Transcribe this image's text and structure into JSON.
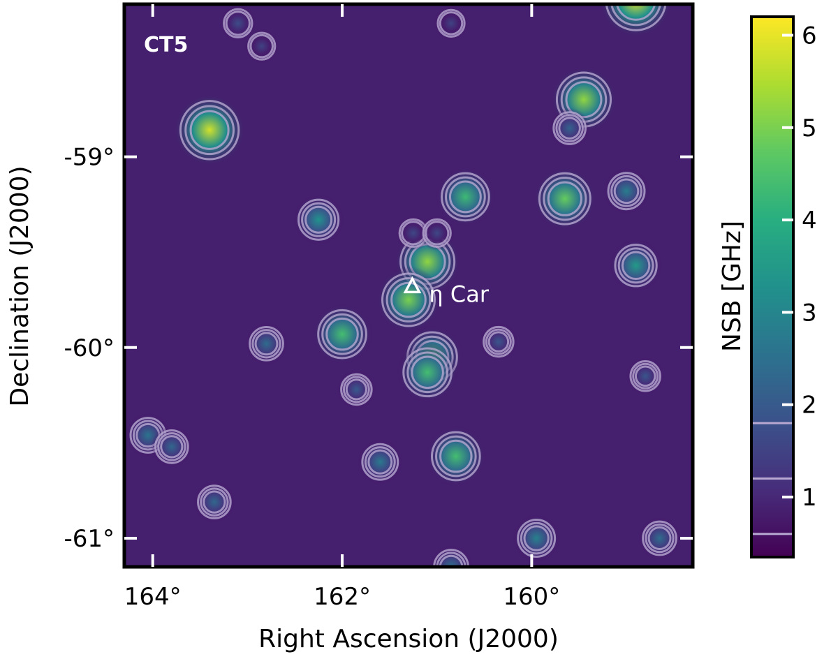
{
  "chart_data": {
    "type": "heatmap",
    "panel_label": "CT5",
    "xlabel": "Right Ascension (J2000)",
    "ylabel": "Declination (J2000)",
    "colorbar_label": "NSB [GHz]",
    "colormap": "viridis",
    "x_ticks": [
      164,
      162,
      160
    ],
    "x_tick_labels": [
      "164°",
      "162°",
      "160°"
    ],
    "y_ticks": [
      -59,
      -60,
      -61
    ],
    "y_tick_labels": [
      "-59°",
      "-60°",
      "-61°"
    ],
    "xlim": [
      164.3,
      158.3
    ],
    "ylim": [
      -61.15,
      -58.2
    ],
    "colorbar_ticks": [
      1,
      2,
      3,
      4,
      5,
      6
    ],
    "colorbar_tick_labels": [
      "1",
      "2",
      "3",
      "4",
      "5",
      "6"
    ],
    "colorbar_range": [
      0.35,
      6.2
    ],
    "contour_levels": [
      0.6,
      1.2,
      1.8
    ],
    "background_level": 0.6,
    "sources": [
      {
        "ra": 163.4,
        "dec": -58.86,
        "nsb": 5.8
      },
      {
        "ra": 162.25,
        "dec": -59.33,
        "nsb": 3.3
      },
      {
        "ra": 161.1,
        "dec": -59.55,
        "nsb": 5.2
      },
      {
        "ra": 161.3,
        "dec": -59.75,
        "nsb": 5.0
      },
      {
        "ra": 161.05,
        "dec": -60.05,
        "nsb": 4.6
      },
      {
        "ra": 161.1,
        "dec": -60.13,
        "nsb": 4.4
      },
      {
        "ra": 162.0,
        "dec": -59.93,
        "nsb": 4.4
      },
      {
        "ra": 160.7,
        "dec": -59.21,
        "nsb": 4.3
      },
      {
        "ra": 159.65,
        "dec": -59.22,
        "nsb": 4.8
      },
      {
        "ra": 159.45,
        "dec": -58.7,
        "nsb": 5.2
      },
      {
        "ra": 158.9,
        "dec": -58.18,
        "nsb": 6.0
      },
      {
        "ra": 159.0,
        "dec": -59.18,
        "nsb": 2.8
      },
      {
        "ra": 158.9,
        "dec": -59.57,
        "nsb": 3.5
      },
      {
        "ra": 160.8,
        "dec": -60.57,
        "nsb": 4.4
      },
      {
        "ra": 161.6,
        "dec": -60.6,
        "nsb": 2.7
      },
      {
        "ra": 162.8,
        "dec": -59.98,
        "nsb": 2.4
      },
      {
        "ra": 164.05,
        "dec": -60.46,
        "nsb": 2.6
      },
      {
        "ra": 163.8,
        "dec": -60.52,
        "nsb": 2.3
      },
      {
        "ra": 163.35,
        "dec": -60.81,
        "nsb": 2.3
      },
      {
        "ra": 159.95,
        "dec": -61.0,
        "nsb": 2.9
      },
      {
        "ra": 158.65,
        "dec": -61.0,
        "nsb": 2.4
      },
      {
        "ra": 159.6,
        "dec": -58.85,
        "nsb": 2.2
      },
      {
        "ra": 161.85,
        "dec": -60.22,
        "nsb": 2.0
      },
      {
        "ra": 160.35,
        "dec": -59.97,
        "nsb": 1.9
      },
      {
        "ra": 158.8,
        "dec": -60.15,
        "nsb": 1.9
      },
      {
        "ra": 163.1,
        "dec": -58.3,
        "nsb": 1.7
      },
      {
        "ra": 162.85,
        "dec": -58.42,
        "nsb": 1.5
      },
      {
        "ra": 160.85,
        "dec": -61.15,
        "nsb": 2.5
      },
      {
        "ra": 161.25,
        "dec": -59.4,
        "nsb": 1.6
      },
      {
        "ra": 161.0,
        "dec": -59.4,
        "nsb": 1.6
      },
      {
        "ra": 160.85,
        "dec": -58.3,
        "nsb": 1.5
      }
    ],
    "annotation": {
      "name": "η Car",
      "ra": 161.26,
      "dec": -59.68,
      "marker": "triangle"
    }
  }
}
